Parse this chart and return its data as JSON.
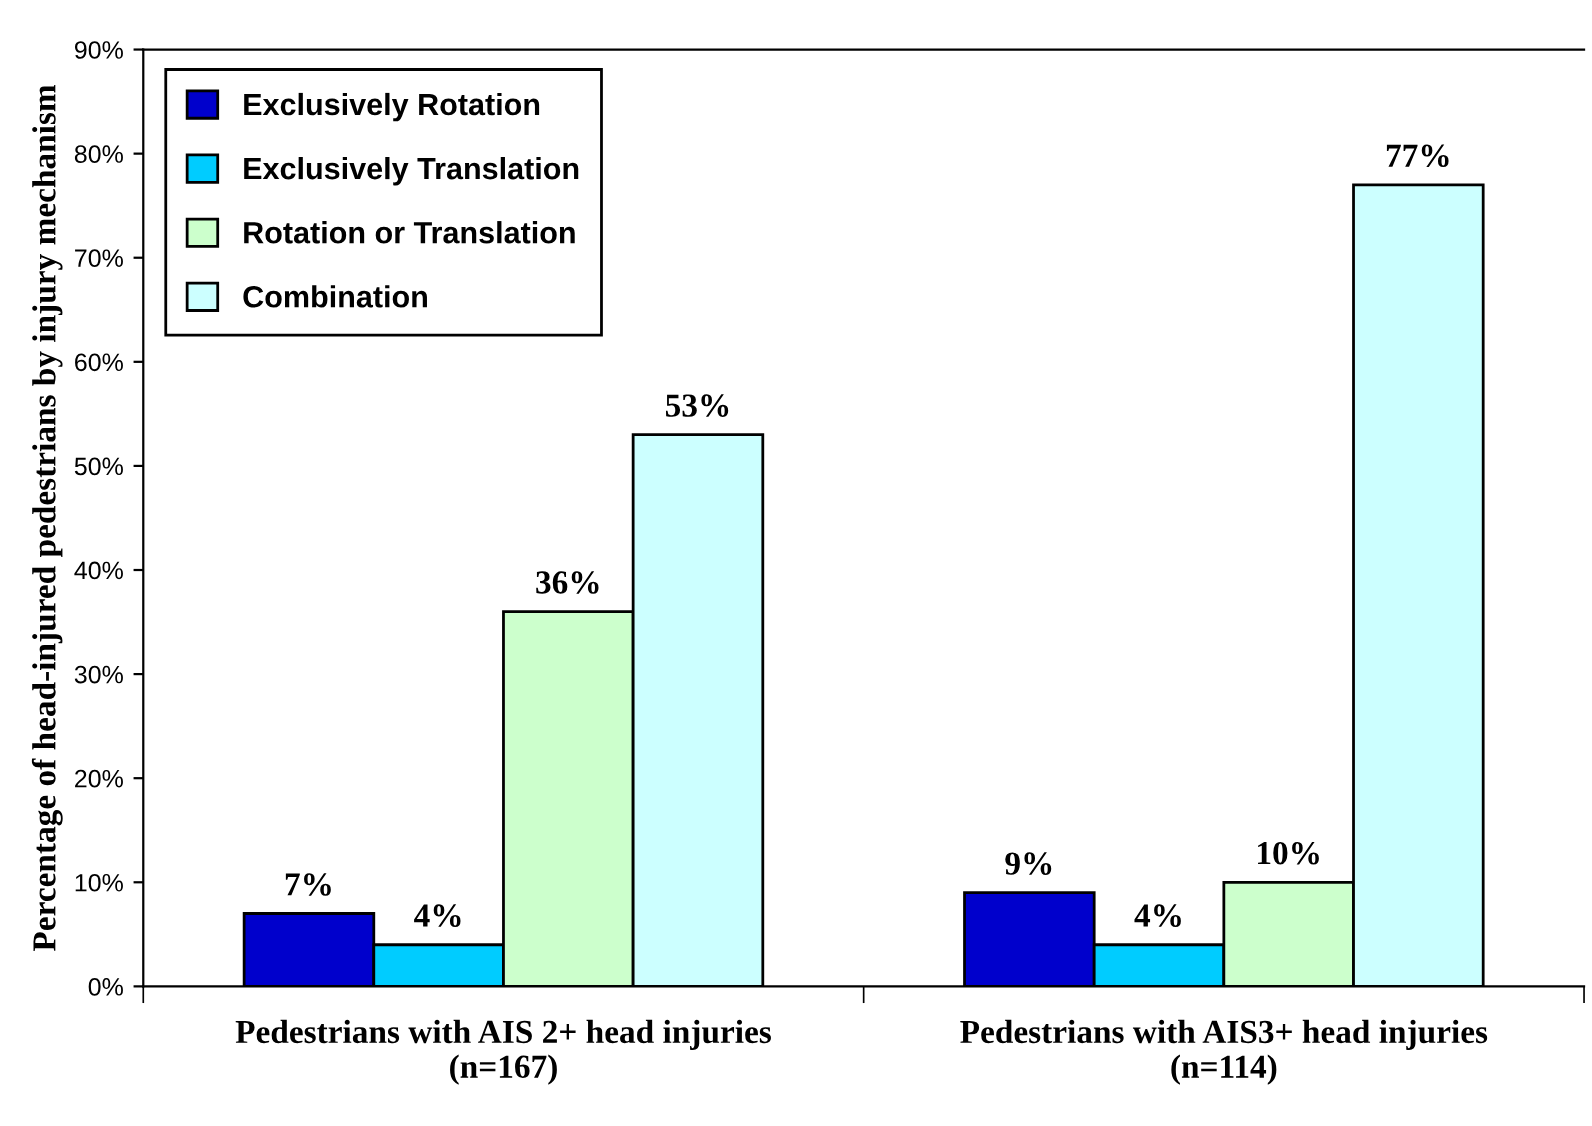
{
  "chart_data": {
    "type": "bar",
    "ylabel": "Percentage of head-injured pedestrians by injury mechanism",
    "categories": [
      "Pedestrians with AIS 2+ head injuries\n(n=167)",
      "Pedestrians with AIS3+ head injuries\n(n=114)"
    ],
    "series": [
      {
        "name": "Exclusively Rotation",
        "color": "#0000cc",
        "values": [
          7,
          9
        ],
        "value_labels": [
          "7%",
          "9%"
        ]
      },
      {
        "name": "Exclusively Translation",
        "color": "#00ccff",
        "values": [
          4,
          4
        ],
        "value_labels": [
          "4%",
          "4%"
        ]
      },
      {
        "name": "Rotation or Translation",
        "color": "#ccffcc",
        "values": [
          36,
          10
        ],
        "value_labels": [
          "36%",
          "10%"
        ]
      },
      {
        "name": "Combination",
        "color": "#ccffff",
        "values": [
          53,
          77
        ],
        "value_labels": [
          "53%",
          "77%"
        ]
      }
    ],
    "ylim": [
      0,
      90
    ],
    "yticks": [
      {
        "value": 0,
        "label": "0%"
      },
      {
        "value": 10,
        "label": "10%"
      },
      {
        "value": 20,
        "label": "20%"
      },
      {
        "value": 30,
        "label": "30%"
      },
      {
        "value": 40,
        "label": "40%"
      },
      {
        "value": 50,
        "label": "50%"
      },
      {
        "value": 60,
        "label": "60%"
      },
      {
        "value": 70,
        "label": "70%"
      },
      {
        "value": 80,
        "label": "80%"
      },
      {
        "value": 90,
        "label": "90%"
      }
    ],
    "legend": "top left",
    "grid": false
  }
}
